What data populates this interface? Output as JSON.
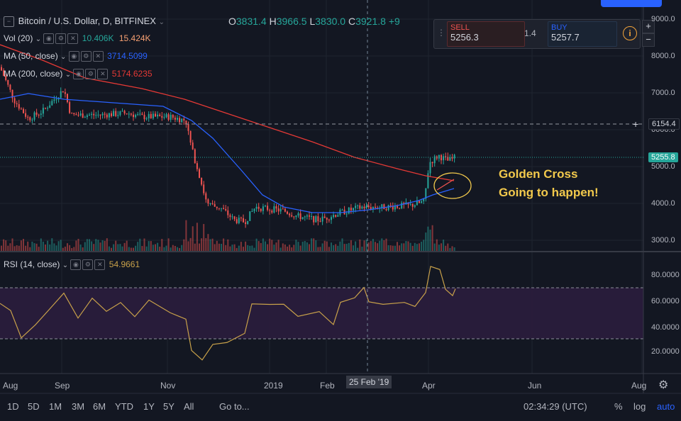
{
  "header": {
    "symbol": "Bitcoin / U.S. Dollar, D, BITFINEX",
    "open_label": "O",
    "open": "3831.4",
    "high_label": "H",
    "high": "3966.5",
    "low_label": "L",
    "low": "3830.0",
    "close_label": "C",
    "close": "3921.8",
    "change": "+9"
  },
  "indicators": {
    "vol": {
      "label": "Vol (20)",
      "v1": "10.406K",
      "v2": "15.424K"
    },
    "ma50": {
      "label": "MA (50, close)",
      "value": "3714.5099"
    },
    "ma200": {
      "label": "MA (200, close)",
      "value": "5174.6235"
    },
    "rsi": {
      "label": "RSI (14, close)",
      "value": "54.9661"
    }
  },
  "trade": {
    "sell_label": "SELL",
    "sell_price": "5256.3",
    "spread": "1.4",
    "buy_label": "BUY",
    "buy_price": "5257.7"
  },
  "price_axis": {
    "ticks": [
      "9000.0",
      "8000.0",
      "7000.0",
      "6000.0",
      "5000.0",
      "4000.0",
      "3000.0"
    ],
    "hline_tag": "6154.4",
    "last_price_tag": "5255.8"
  },
  "rsi_axis": {
    "ticks": [
      "80.0000",
      "60.0000",
      "40.0000",
      "20.0000"
    ]
  },
  "time_axis": {
    "labels": [
      "Aug",
      "Sep",
      "Nov",
      "2019",
      "Feb",
      "Apr",
      "Jun",
      "Aug"
    ],
    "crosshair_label": "25 Feb '19"
  },
  "annotation": {
    "line1": "Golden Cross",
    "line2": "Going to happen!"
  },
  "bottom_bar": {
    "ranges": [
      "1D",
      "5D",
      "1M",
      "3M",
      "6M",
      "YTD",
      "1Y",
      "5Y",
      "All"
    ],
    "goto": "Go to...",
    "time": "02:34:29 (UTC)",
    "percent": "%",
    "log": "log",
    "auto": "auto"
  },
  "colors": {
    "up": "#26a69a",
    "down": "#ef5350",
    "ma50": "#2962ff",
    "ma200": "#e53935",
    "rsi": "#c8a14a",
    "annotation": "#f2c94c",
    "auto": "#2962ff"
  }
}
